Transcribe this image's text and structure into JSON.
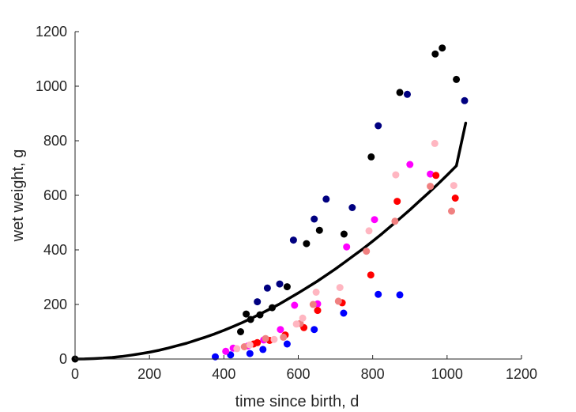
{
  "chart_data": {
    "type": "scatter",
    "xlabel": "time since birth, d",
    "ylabel": "wet weight, g",
    "xlim": [
      0,
      1200
    ],
    "ylim": [
      0,
      1200
    ],
    "xticks": [
      "0",
      "200",
      "400",
      "600",
      "800",
      "1000",
      "1200"
    ],
    "yticks": [
      "0",
      "200",
      "400",
      "600",
      "800",
      "1000",
      "1200"
    ],
    "grid": false,
    "legend": "none",
    "series": [
      {
        "color": "#000000",
        "points": [
          [
            0,
            0
          ],
          [
            445,
            100
          ],
          [
            460,
            165
          ],
          [
            472,
            145
          ],
          [
            497,
            162
          ],
          [
            530,
            188
          ],
          [
            570,
            265
          ],
          [
            622,
            423
          ],
          [
            657,
            472
          ],
          [
            723,
            458
          ],
          [
            796,
            741
          ],
          [
            873,
            977
          ],
          [
            968,
            1118
          ],
          [
            987,
            1140
          ],
          [
            1025,
            1025
          ]
        ]
      },
      {
        "color": "#000080",
        "points": [
          [
            490,
            210
          ],
          [
            517,
            260
          ],
          [
            550,
            275
          ],
          [
            587,
            436
          ],
          [
            643,
            513
          ],
          [
            675,
            586
          ],
          [
            745,
            555
          ],
          [
            815,
            855
          ],
          [
            893,
            970
          ],
          [
            1047,
            947
          ]
        ]
      },
      {
        "color": "#0000ff",
        "points": [
          [
            377,
            8
          ],
          [
            418,
            15
          ],
          [
            470,
            20
          ],
          [
            505,
            35
          ],
          [
            570,
            55
          ],
          [
            643,
            108
          ],
          [
            722,
            168
          ],
          [
            815,
            237
          ],
          [
            873,
            235
          ]
        ]
      },
      {
        "color": "#ff00ff",
        "points": [
          [
            405,
            28
          ],
          [
            425,
            40
          ],
          [
            465,
            48
          ],
          [
            507,
            70
          ],
          [
            552,
            108
          ],
          [
            590,
            197
          ],
          [
            652,
            202
          ],
          [
            730,
            411
          ],
          [
            805,
            511
          ],
          [
            900,
            713
          ],
          [
            955,
            678
          ]
        ]
      },
      {
        "color": "#ff0000",
        "points": [
          [
            480,
            55
          ],
          [
            490,
            60
          ],
          [
            523,
            68
          ],
          [
            565,
            88
          ],
          [
            615,
            115
          ],
          [
            652,
            178
          ],
          [
            718,
            206
          ],
          [
            795,
            308
          ],
          [
            866,
            578
          ],
          [
            970,
            673
          ],
          [
            1022,
            590
          ]
        ]
      },
      {
        "color": "#f08080",
        "points": [
          [
            455,
            45
          ],
          [
            512,
            75
          ],
          [
            560,
            80
          ],
          [
            605,
            130
          ],
          [
            640,
            200
          ],
          [
            708,
            212
          ],
          [
            783,
            395
          ],
          [
            860,
            505
          ],
          [
            955,
            633
          ],
          [
            1012,
            542
          ]
        ]
      },
      {
        "color": "#ffb6c1",
        "points": [
          [
            435,
            38
          ],
          [
            470,
            52
          ],
          [
            535,
            72
          ],
          [
            595,
            128
          ],
          [
            612,
            150
          ],
          [
            648,
            245
          ],
          [
            712,
            262
          ],
          [
            790,
            470
          ],
          [
            862,
            675
          ],
          [
            967,
            790
          ],
          [
            1018,
            636
          ]
        ]
      }
    ],
    "curve": {
      "color": "#000000",
      "points": [
        [
          0,
          0
        ],
        [
          25,
          0.3
        ],
        [
          50,
          1.4
        ],
        [
          75,
          3.2
        ],
        [
          100,
          5.9
        ],
        [
          125,
          9.4
        ],
        [
          150,
          13.8
        ],
        [
          175,
          19
        ],
        [
          200,
          25
        ],
        [
          225,
          32
        ],
        [
          250,
          40
        ],
        [
          275,
          49
        ],
        [
          300,
          58
        ],
        [
          325,
          69
        ],
        [
          350,
          80
        ],
        [
          375,
          92
        ],
        [
          400,
          105
        ],
        [
          425,
          119
        ],
        [
          450,
          134
        ],
        [
          475,
          150
        ],
        [
          500,
          167
        ],
        [
          525,
          184
        ],
        [
          550,
          202
        ],
        [
          575,
          222
        ],
        [
          600,
          242
        ],
        [
          625,
          263
        ],
        [
          650,
          284
        ],
        [
          675,
          307
        ],
        [
          700,
          330
        ],
        [
          725,
          355
        ],
        [
          750,
          380
        ],
        [
          775,
          405
        ],
        [
          800,
          432
        ],
        [
          825,
          459
        ],
        [
          850,
          488
        ],
        [
          875,
          517
        ],
        [
          900,
          547
        ],
        [
          925,
          578
        ],
        [
          950,
          609
        ],
        [
          975,
          641
        ],
        [
          1000,
          674
        ],
        [
          1025,
          708
        ],
        [
          1050,
          865
        ]
      ]
    }
  }
}
